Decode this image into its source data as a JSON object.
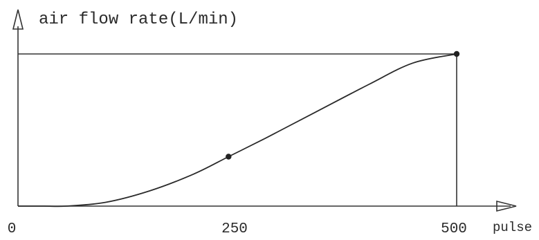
{
  "chart_data": {
    "type": "line",
    "title": "",
    "ylabel": "air flow rate(L/min)",
    "xlabel": "pulse",
    "xlim": [
      0,
      580
    ],
    "ylim": [
      0,
      1
    ],
    "grid": false,
    "x_ticks": [
      {
        "value": 0,
        "label": "0"
      },
      {
        "value": 250,
        "label": "250"
      },
      {
        "value": 500,
        "label": "500"
      }
    ],
    "series": [
      {
        "x": [
          0,
          30,
          55,
          100,
          150,
          200,
          240,
          280,
          300,
          340,
          400,
          450,
          500
        ],
        "y": [
          0,
          0,
          0,
          0.025,
          0.1,
          0.21,
          0.325,
          0.44,
          0.5,
          0.62,
          0.8,
          0.94,
          1.0
        ]
      }
    ],
    "markers": [
      {
        "x": 240,
        "y": 0.325
      },
      {
        "x": 500,
        "y": 1.0
      }
    ],
    "reference_lines": {
      "max_y": 1.0,
      "max_x": 500
    }
  }
}
